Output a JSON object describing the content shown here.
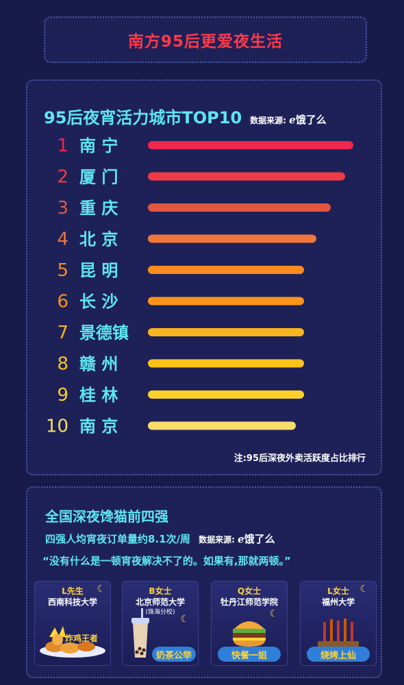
{
  "header": {
    "title": "南方95后更爱夜生活"
  },
  "ranking": {
    "title": "95后夜宵活力城市TOP10",
    "source_label": "数据来源:",
    "source_logo": "ℯ饿了么",
    "note": "注:95后深夜外卖活跃度占比排行"
  },
  "chart_data": {
    "type": "bar",
    "orientation": "horizontal",
    "title": "95后夜宵活力城市TOP10",
    "categories": [
      "南 宁",
      "厦 门",
      "重 庆",
      "北 京",
      "昆 明",
      "长 沙",
      "景德镇",
      "赣 州",
      "桂 林",
      "南 京"
    ],
    "ranks": [
      "1",
      "2",
      "3",
      "4",
      "5",
      "6",
      "7",
      "8",
      "9",
      "10"
    ],
    "values": [
      100,
      96,
      89,
      82,
      76,
      76,
      76,
      76,
      76,
      72
    ],
    "colors": [
      "#f0274f",
      "#f03a46",
      "#e2573f",
      "#f0763c",
      "#fb8a1f",
      "#fb9418",
      "#f8b51f",
      "#fcc21a",
      "#fcd02b",
      "#f8dd6a"
    ],
    "xlim": [
      0,
      100
    ],
    "grid": false
  },
  "snack": {
    "title": "全国深夜馋猫前四强",
    "subtitle": "四强人均宵夜订单量约8.1次/周",
    "source_label": "数据来源:",
    "source_logo": "ℯ饿了么",
    "quote": "“没有什么是一顿宵夜解决不了的。如果有,那就两顿。”",
    "cards": [
      {
        "name": "L先生",
        "school": "西南科技大学",
        "campus": "",
        "badge": "炸鸡王者",
        "icon": "fried-chicken-icon"
      },
      {
        "name": "B女士",
        "school": "北京师范大学",
        "campus": "(珠海分校)",
        "badge": "奶茶公举",
        "icon": "milk-tea-icon"
      },
      {
        "name": "Q女士",
        "school": "牡丹江师范学院",
        "campus": "",
        "badge": "快餐一姐",
        "icon": "burger-icon"
      },
      {
        "name": "L女士",
        "school": "福州大学",
        "campus": "",
        "badge": "烧烤上仙",
        "icon": "bbq-icon"
      }
    ]
  }
}
